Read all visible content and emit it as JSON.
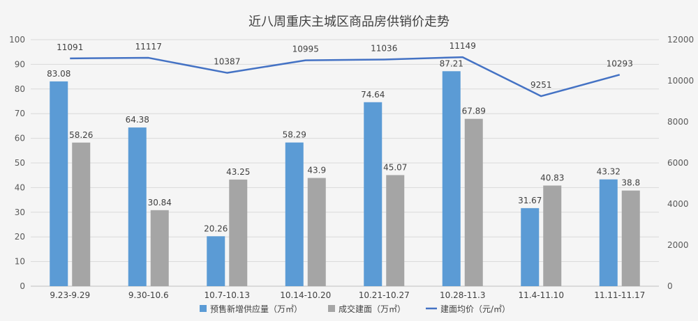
{
  "chart_data": {
    "type": "bar",
    "title": "近八周重庆主城区商品房供销价走势",
    "categories": [
      "9.23-9.29",
      "9.30-10.6",
      "10.7-10.13",
      "10.14-10.20",
      "10.21-10.27",
      "10.28-11.3",
      "11.4-11.10",
      "11.11-11.17"
    ],
    "series": [
      {
        "name": "预售新增供应量（万㎡）",
        "type": "bar",
        "axis": "left",
        "color": "#5b9bd5",
        "values": [
          83.08,
          64.38,
          20.26,
          58.29,
          74.64,
          87.21,
          31.67,
          43.32
        ],
        "labels": [
          "83.08",
          "64.38",
          "20.26",
          "58.29",
          "74.64",
          "87.21",
          "31.67",
          "43.32"
        ]
      },
      {
        "name": "成交建面（万㎡）",
        "type": "bar",
        "axis": "left",
        "color": "#a5a5a5",
        "values": [
          58.26,
          30.84,
          43.25,
          43.9,
          45.07,
          67.89,
          40.83,
          38.8
        ],
        "labels": [
          "58.26",
          "30.84",
          "43.25",
          "43.9",
          "45.07",
          "67.89",
          "40.83",
          "38.8"
        ]
      },
      {
        "name": "建面均价（元/㎡）",
        "type": "line",
        "axis": "right",
        "color": "#4472c4",
        "values": [
          11091,
          11117,
          10387,
          10995,
          11036,
          11149,
          9251,
          10293
        ],
        "labels": [
          "11091",
          "11117",
          "10387",
          "10995",
          "11036",
          "11149",
          "9251",
          "10293"
        ]
      }
    ],
    "y_left": {
      "min": 0,
      "max": 100,
      "step": 10,
      "ticks": [
        "0",
        "10",
        "20",
        "30",
        "40",
        "50",
        "60",
        "70",
        "80",
        "90",
        "100"
      ]
    },
    "y_right": {
      "min": 0,
      "max": 12000,
      "step": 2000,
      "ticks": [
        "0",
        "2000",
        "4000",
        "6000",
        "8000",
        "10000",
        "12000"
      ]
    },
    "grid": true,
    "legend": "bottom"
  }
}
